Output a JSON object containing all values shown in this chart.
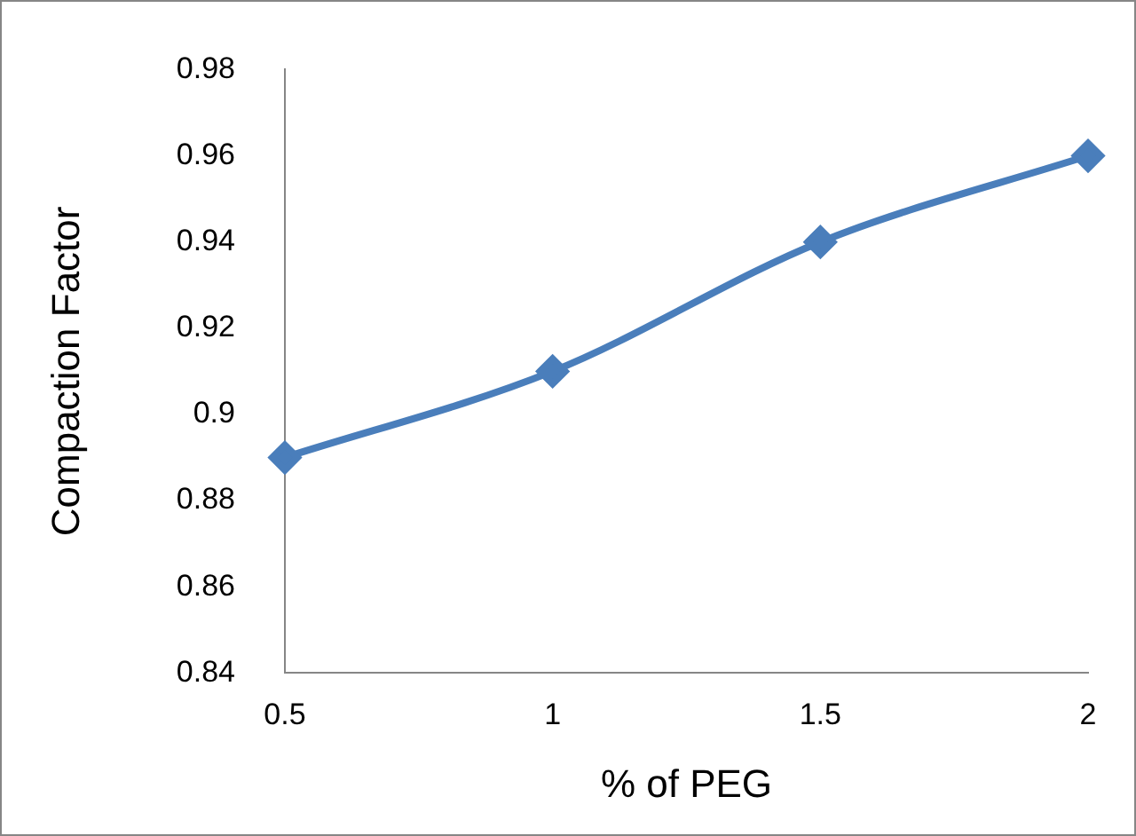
{
  "chart_data": {
    "type": "line",
    "xlabel": "% of PEG",
    "ylabel": "Compaction Factor",
    "categories": [
      "0.5",
      "1",
      "1.5",
      "2"
    ],
    "series": [
      {
        "color": "#4a7ebb",
        "values": [
          0.89,
          0.91,
          0.94,
          0.96
        ]
      }
    ],
    "ylim": [
      0.84,
      0.98
    ],
    "yticks": [
      0.84,
      0.86,
      0.88,
      0.9,
      0.92,
      0.94,
      0.96,
      0.98
    ],
    "grid": false,
    "legend": false,
    "marker": "diamond",
    "line_style": "solid"
  }
}
